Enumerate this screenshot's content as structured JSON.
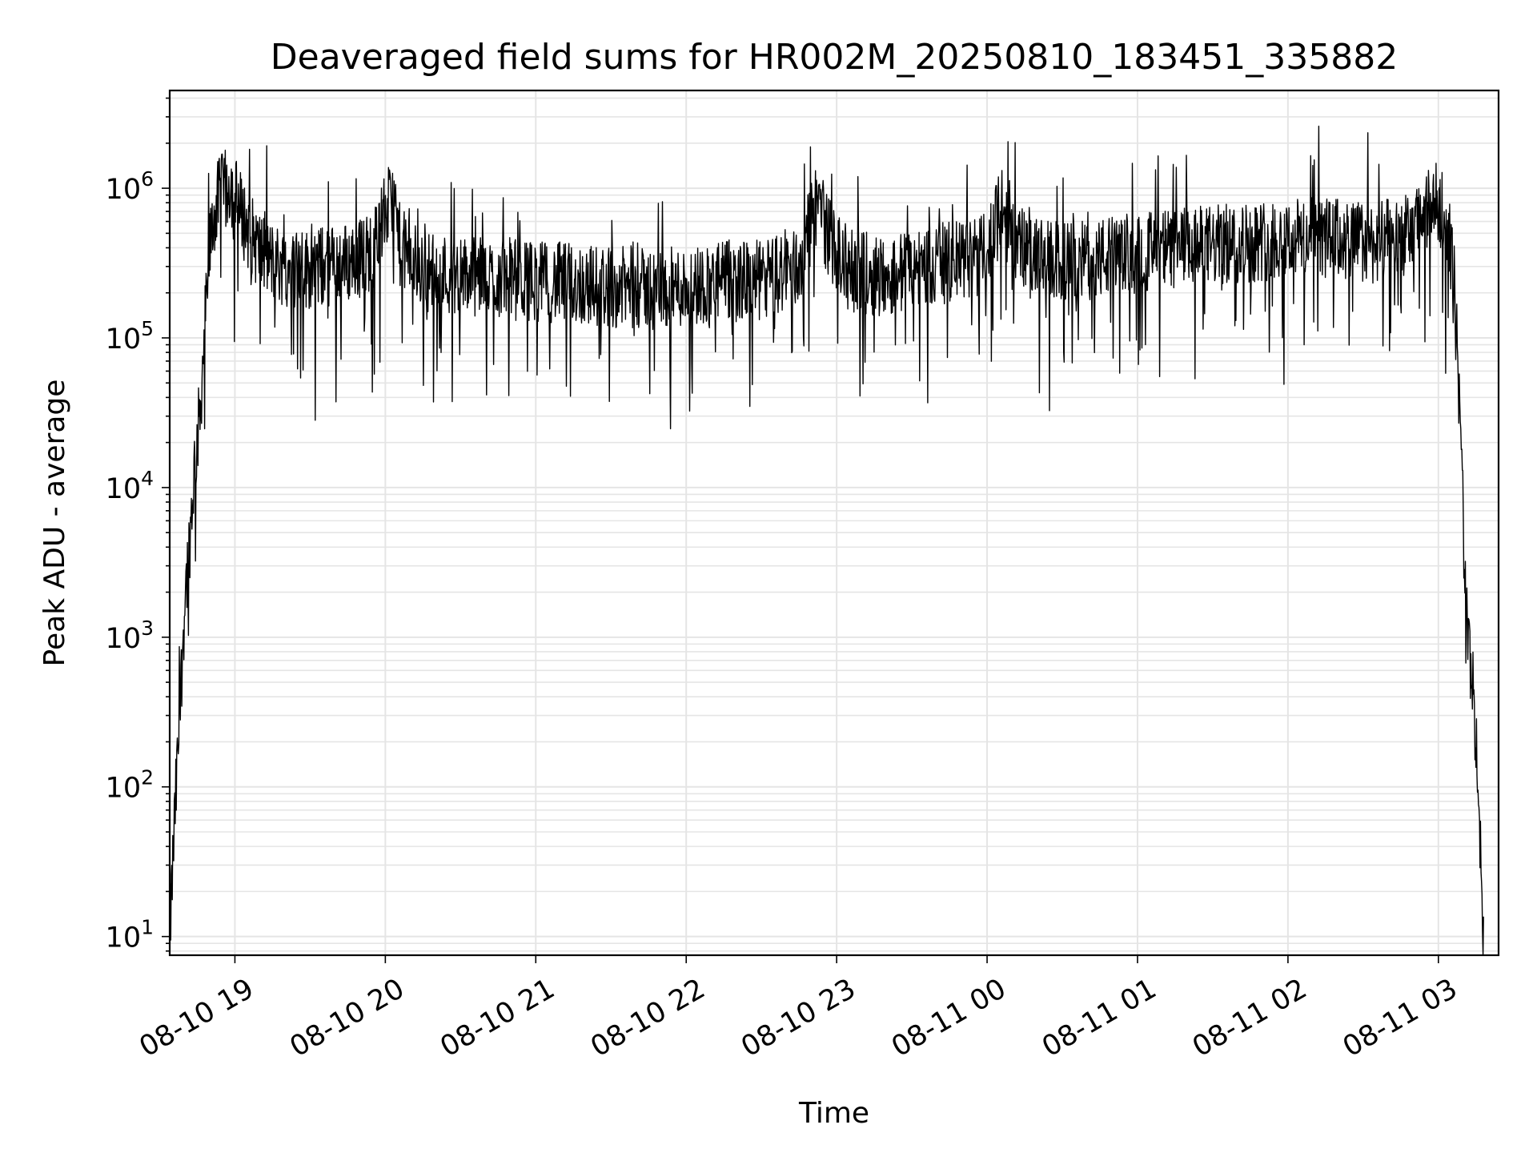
{
  "chart_data": {
    "type": "line",
    "title": "Deaveraged field sums for HR002M_20250810_183451_335882",
    "xlabel": "Time",
    "ylabel": "Peak ADU - average",
    "x_range": [
      "08-10 18:34",
      "08-11 03:24"
    ],
    "x_ticks": [
      "08-10 19",
      "08-10 20",
      "08-10 21",
      "08-10 22",
      "08-10 23",
      "08-11 00",
      "08-11 01",
      "08-11 02",
      "08-11 03"
    ],
    "y_scale": "log",
    "y_ticks": [
      {
        "base": "10",
        "exp": "1"
      },
      {
        "base": "10",
        "exp": "2"
      },
      {
        "base": "10",
        "exp": "3"
      },
      {
        "base": "10",
        "exp": "4"
      },
      {
        "base": "10",
        "exp": "5"
      },
      {
        "base": "10",
        "exp": "6"
      }
    ],
    "ylim": [
      7.5,
      4500000
    ],
    "grid": true,
    "line_color": "#000000",
    "grid_color": "#e5e5e5",
    "series": [
      {
        "points": [
          [
            "08-10 18:34",
            10
          ],
          [
            "08-10 18:36",
            60
          ],
          [
            "08-10 18:38",
            300
          ],
          [
            "08-10 18:40",
            1800
          ],
          [
            "08-10 18:42",
            4500
          ],
          [
            "08-10 18:44",
            15000
          ],
          [
            "08-10 18:46",
            30000
          ],
          [
            "08-10 18:48",
            120000
          ],
          [
            "08-10 18:50",
            400000
          ],
          [
            "08-10 18:52",
            700000
          ],
          [
            "08-10 18:54",
            900000
          ],
          [
            "08-10 18:56",
            950000
          ],
          [
            "08-10 18:58",
            1100000
          ],
          [
            "08-10 19:00",
            900000
          ],
          [
            "08-10 19:03",
            650000
          ],
          [
            "08-10 19:06",
            500000
          ],
          [
            "08-10 19:10",
            380000
          ],
          [
            "08-10 19:15",
            320000
          ],
          [
            "08-10 19:25",
            280000
          ],
          [
            "08-10 19:35",
            300000
          ],
          [
            "08-10 19:45",
            320000
          ],
          [
            "08-10 19:55",
            380000
          ],
          [
            "08-10 20:00",
            700000
          ],
          [
            "08-10 20:03",
            800000
          ],
          [
            "08-10 20:06",
            400000
          ],
          [
            "08-10 20:15",
            280000
          ],
          [
            "08-10 20:30",
            260000
          ],
          [
            "08-10 20:45",
            250000
          ],
          [
            "08-10 21:00",
            240000
          ],
          [
            "08-10 21:15",
            230000
          ],
          [
            "08-10 21:30",
            220000
          ],
          [
            "08-10 21:45",
            210000
          ],
          [
            "08-10 22:00",
            220000
          ],
          [
            "08-10 22:15",
            240000
          ],
          [
            "08-10 22:30",
            240000
          ],
          [
            "08-10 22:45",
            300000
          ],
          [
            "08-10 22:50",
            600000
          ],
          [
            "08-10 22:53",
            900000
          ],
          [
            "08-10 22:56",
            500000
          ],
          [
            "08-10 23:05",
            280000
          ],
          [
            "08-10 23:20",
            260000
          ],
          [
            "08-10 23:35",
            300000
          ],
          [
            "08-10 23:50",
            330000
          ],
          [
            "08-11 00:00",
            360000
          ],
          [
            "08-11 00:04",
            800000
          ],
          [
            "08-11 00:08",
            500000
          ],
          [
            "08-11 00:20",
            330000
          ],
          [
            "08-11 00:35",
            320000
          ],
          [
            "08-11 00:50",
            350000
          ],
          [
            "08-11 01:05",
            380000
          ],
          [
            "08-11 01:20",
            400000
          ],
          [
            "08-11 01:35",
            420000
          ],
          [
            "08-11 01:50",
            450000
          ],
          [
            "08-11 02:05",
            470000
          ],
          [
            "08-11 02:20",
            460000
          ],
          [
            "08-11 02:35",
            430000
          ],
          [
            "08-11 02:50",
            500000
          ],
          [
            "08-11 02:55",
            700000
          ],
          [
            "08-11 03:00",
            800000
          ],
          [
            "08-11 03:03",
            650000
          ],
          [
            "08-11 03:06",
            300000
          ],
          [
            "08-11 03:08",
            50000
          ],
          [
            "08-11 03:10",
            6000
          ],
          [
            "08-11 03:12",
            900
          ],
          [
            "08-11 03:14",
            400
          ],
          [
            "08-11 03:16",
            80
          ],
          [
            "08-11 03:18",
            10
          ]
        ]
      }
    ]
  }
}
